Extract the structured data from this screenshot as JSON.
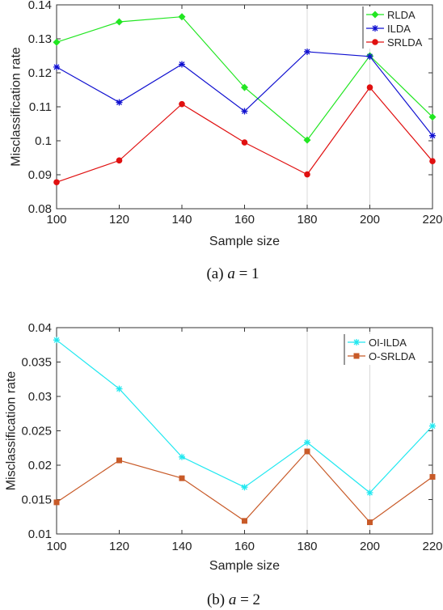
{
  "chart_data": [
    {
      "type": "line",
      "x": [
        100,
        120,
        140,
        160,
        180,
        200,
        220
      ],
      "xticks": [
        "100",
        "120",
        "140",
        "160",
        "180",
        "200",
        "220"
      ],
      "yticks": [
        "0.08",
        "0.09",
        "0.1",
        "0.11",
        "0.12",
        "0.13",
        "0.14"
      ],
      "xlim": [
        100,
        220
      ],
      "ylim": [
        0.08,
        0.14
      ],
      "xlabel": "Sample size",
      "ylabel": "Misclassification rate",
      "legend_position": "top-right",
      "grid": "vertical lines at 180 and 200",
      "caption_prefix": "(a)",
      "caption_var": "a",
      "caption_rest": "= 1",
      "series": [
        {
          "name": "RLDA",
          "color": "#22e622",
          "marker": "diamond",
          "values": [
            0.129,
            0.135,
            0.1365,
            0.1157,
            0.1002,
            0.125,
            0.107
          ]
        },
        {
          "name": "ILDA",
          "color": "#1010d0",
          "marker": "star",
          "values": [
            0.1217,
            0.1113,
            0.1225,
            0.1087,
            0.1262,
            0.1248,
            0.1015
          ]
        },
        {
          "name": "SRLDA",
          "color": "#e01010",
          "marker": "circle",
          "values": [
            0.0878,
            0.0942,
            0.1108,
            0.0995,
            0.0901,
            0.1157,
            0.094
          ]
        }
      ]
    },
    {
      "type": "line",
      "x": [
        100,
        120,
        140,
        160,
        180,
        200,
        220
      ],
      "xticks": [
        "100",
        "120",
        "140",
        "160",
        "180",
        "200",
        "220"
      ],
      "yticks": [
        "0.01",
        "0.015",
        "0.02",
        "0.025",
        "0.03",
        "0.035",
        "0.04"
      ],
      "xlim": [
        100,
        220
      ],
      "ylim": [
        0.01,
        0.04
      ],
      "xlabel": "Sample size",
      "ylabel": "Misclassification rate",
      "legend_position": "top-right",
      "grid": "vertical lines at 180 and 200",
      "caption_prefix": "(b)",
      "caption_var": "a",
      "caption_rest": "= 2",
      "series": [
        {
          "name": "OI-ILDA",
          "color": "#22e8f0",
          "marker": "star",
          "values": [
            0.0382,
            0.0311,
            0.0212,
            0.0168,
            0.0233,
            0.016,
            0.0257
          ]
        },
        {
          "name": "O-SRLDA",
          "color": "#c85a28",
          "marker": "square",
          "values": [
            0.0146,
            0.0207,
            0.0181,
            0.0119,
            0.022,
            0.0117,
            0.0183
          ]
        }
      ]
    }
  ]
}
